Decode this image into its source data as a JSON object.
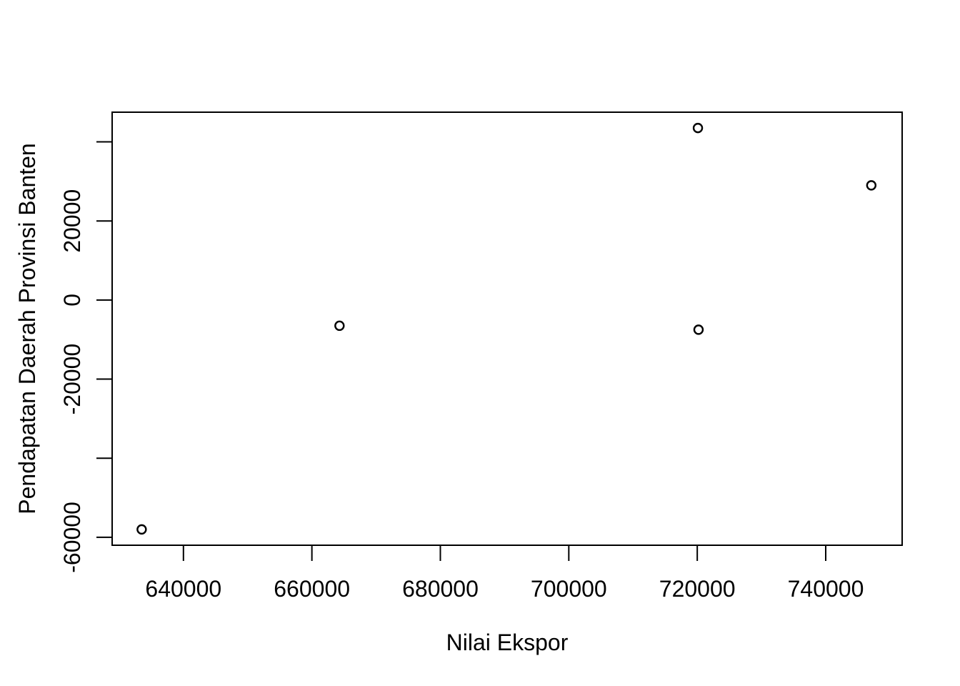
{
  "chart_data": {
    "type": "scatter",
    "title": "",
    "xlabel": "Nilai Ekspor",
    "ylabel": "Pendapatan Daerah Provinsi Banten",
    "xlim": [
      628900,
      751900
    ],
    "ylim": [
      -62000,
      47500
    ],
    "x_ticks": [
      640000,
      660000,
      680000,
      700000,
      720000,
      740000
    ],
    "x_tick_labels": [
      "640000",
      "660000",
      "680000",
      "700000",
      "720000",
      "740000"
    ],
    "y_ticks": [
      -60000,
      -40000,
      -20000,
      0,
      20000,
      40000
    ],
    "y_tick_labels": [
      "-60000",
      "",
      "-20000",
      "0",
      "20000",
      ""
    ],
    "grid": false,
    "legend": "none",
    "marker": "open-circle",
    "colors": {
      "marker": "#000000",
      "axis": "#000000",
      "background": "#ffffff"
    },
    "points": [
      {
        "x": 633500,
        "y": -58000
      },
      {
        "x": 664300,
        "y": -6500
      },
      {
        "x": 720100,
        "y": 43500
      },
      {
        "x": 720200,
        "y": -7500
      },
      {
        "x": 747100,
        "y": 29000
      }
    ]
  }
}
